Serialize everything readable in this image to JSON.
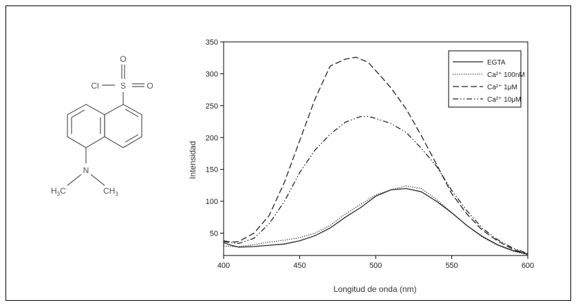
{
  "molecule": {
    "atoms": {
      "cl": "Cl",
      "s": "S",
      "o_top": "O",
      "o_right": "O",
      "n": "N",
      "h3c_left": "H",
      "h3c_left_sub": "3",
      "h3c_left_c": "C",
      "ch3_right_c": "CH",
      "ch3_right_sub": "3"
    }
  },
  "chart_data": {
    "type": "line",
    "xlabel": "Longitud de onda (nm)",
    "ylabel": "Intensidad",
    "xlim": [
      400,
      600
    ],
    "ylim": [
      15,
      350
    ],
    "xticks": [
      400,
      450,
      500,
      550,
      600
    ],
    "yticks": [
      50,
      100,
      150,
      200,
      250,
      300,
      350
    ],
    "grid": false,
    "legend_position": "top-right",
    "series": [
      {
        "name": "EGTA",
        "dash": "solid",
        "x": [
          400,
          405,
          410,
          420,
          430,
          440,
          450,
          460,
          470,
          480,
          490,
          500,
          510,
          520,
          530,
          540,
          550,
          560,
          570,
          580,
          590,
          600
        ],
        "y": [
          35,
          31,
          28,
          29,
          31,
          33,
          38,
          46,
          58,
          75,
          90,
          108,
          118,
          120,
          115,
          100,
          82,
          62,
          45,
          32,
          23,
          17
        ]
      },
      {
        "name": "Ca²⁺ 100nM",
        "dash": "dotted",
        "x": [
          400,
          405,
          410,
          420,
          430,
          440,
          450,
          460,
          470,
          480,
          490,
          500,
          510,
          520,
          530,
          540,
          550,
          560,
          570,
          580,
          590,
          600
        ],
        "y": [
          30,
          29,
          29,
          32,
          36,
          39,
          43,
          50,
          62,
          80,
          95,
          110,
          118,
          124,
          120,
          103,
          82,
          62,
          44,
          31,
          22,
          16
        ]
      },
      {
        "name": "Ca²⁺ 1μM",
        "dash": "dashed",
        "x": [
          400,
          405,
          410,
          420,
          430,
          440,
          450,
          460,
          470,
          480,
          487,
          495,
          500,
          510,
          520,
          530,
          540,
          550,
          560,
          570,
          580,
          590,
          600
        ],
        "y": [
          38,
          36,
          37,
          50,
          78,
          130,
          195,
          260,
          312,
          323,
          326,
          318,
          305,
          278,
          245,
          203,
          158,
          112,
          80,
          55,
          38,
          25,
          17
        ]
      },
      {
        "name": "Ca²⁺ 10μM",
        "dash": "dashdotdot",
        "x": [
          400,
          405,
          410,
          420,
          430,
          440,
          450,
          460,
          470,
          480,
          490,
          495,
          500,
          510,
          520,
          530,
          540,
          550,
          560,
          570,
          580,
          590,
          600
        ],
        "y": [
          37,
          35,
          34,
          42,
          65,
          100,
          145,
          180,
          205,
          224,
          233,
          233,
          230,
          222,
          208,
          183,
          155,
          117,
          85,
          58,
          40,
          27,
          18
        ]
      }
    ]
  }
}
